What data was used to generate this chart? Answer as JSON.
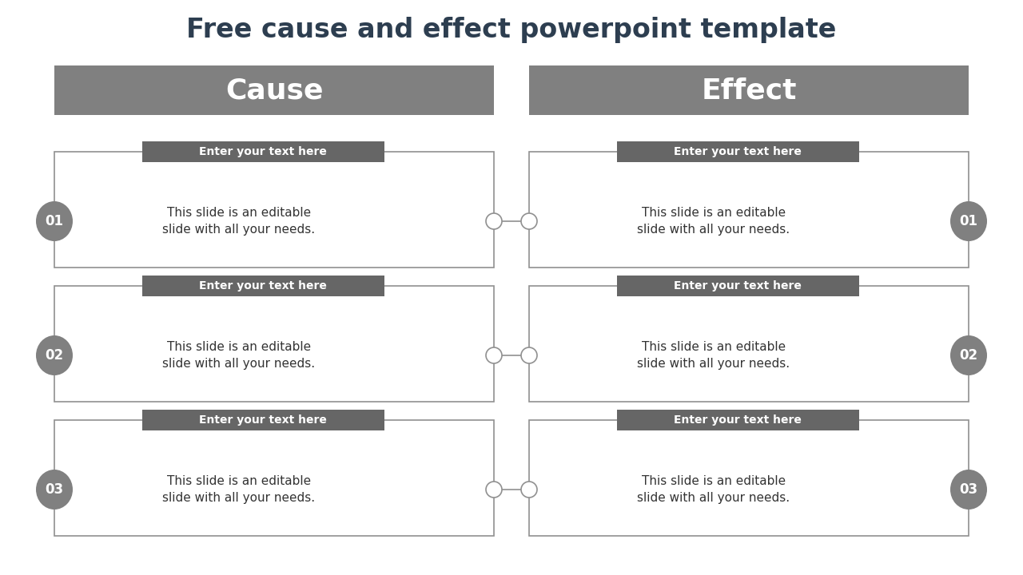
{
  "title": "Free cause and effect powerpoint template",
  "title_color": "#2d3e50",
  "title_fontsize": 24,
  "background_color": "#ffffff",
  "header_bg_color": "#808080",
  "header_text_color": "#ffffff",
  "header_fontsize": 26,
  "cause_label": "Cause",
  "effect_label": "Effect",
  "box_bg_color": "#ffffff",
  "box_border_color": "#909090",
  "small_header_bg": "#666666",
  "small_header_text": "#ffffff",
  "small_header_label": "Enter your text here",
  "small_header_fontsize": 10,
  "circle_bg_color": "#808080",
  "circle_text_color": "#ffffff",
  "circle_fontsize": 12,
  "body_text_line1": "This slide is an editable",
  "body_text_line2": "slide with all your needs.",
  "body_fontsize": 11,
  "body_text_color": "#333333",
  "connector_color": "#909090",
  "numbers": [
    "01",
    "02",
    "03"
  ],
  "fig_w": 12.8,
  "fig_h": 7.2,
  "dpi": 100
}
